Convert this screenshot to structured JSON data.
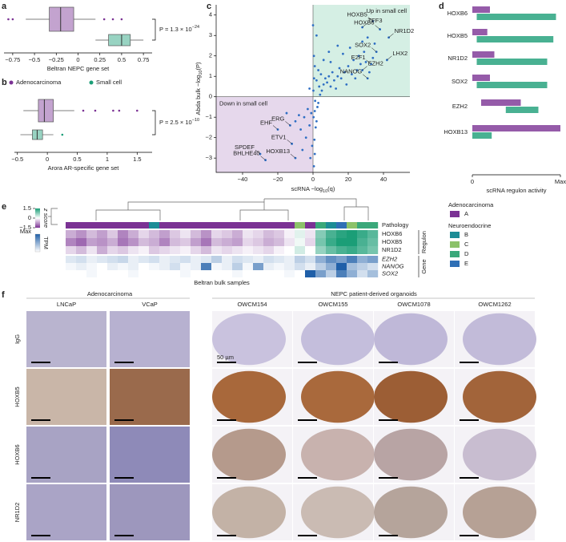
{
  "panel_labels": [
    "a",
    "b",
    "c",
    "d",
    "e",
    "f"
  ],
  "chart_data": [
    {
      "type": "box",
      "xlabel": "Beltran NEPC gene set",
      "xlim": [
        -0.85,
        0.85
      ],
      "xticks": [
        {
          "value": -0.75,
          "label": "−0.75"
        },
        {
          "value": -0.5,
          "label": "−0.5"
        },
        {
          "value": -0.25,
          "label": "−0.25"
        },
        0,
        0.25,
        0.5,
        0.75
      ],
      "series": [
        {
          "color": "#7b3294",
          "box": [
            -0.6,
            -0.33,
            -0.2,
            -0.05,
            0.2
          ],
          "outliers": [
            -0.8,
            -0.75,
            0.3,
            0.4,
            0.5
          ]
        },
        {
          "color": "#1b9e77",
          "box": [
            0.2,
            0.35,
            0.5,
            0.6,
            0.75
          ],
          "outliers": []
        }
      ],
      "p_text": [
        "P = 1.3 × 10",
        "−24"
      ]
    },
    {
      "type": "box",
      "xlabel": "Arora AR-specific gene set",
      "xlim": [
        -0.55,
        1.75
      ],
      "xticks": [
        {
          "value": -0.5,
          "label": "−0.5"
        },
        0,
        0.5,
        1,
        1.5
      ],
      "series": [
        {
          "name": "Adenocarcinoma",
          "color": "#7b3294",
          "box": [
            -0.4,
            -0.15,
            -0.05,
            0.1,
            0.45
          ],
          "outliers": [
            0.6,
            0.8,
            1.1,
            1.2,
            1.5
          ]
        },
        {
          "name": "Small cell",
          "color": "#1b9e77",
          "box": [
            -0.45,
            -0.25,
            -0.17,
            -0.08,
            0.1
          ],
          "outliers": [
            0.25
          ]
        }
      ],
      "p_text": [
        "P = 2.5 × 10",
        "−10"
      ]
    },
    {
      "type": "scatter",
      "xlabel": [
        "scRNA −log",
        "10",
        "(q)"
      ],
      "ylabel": [
        "Abda bulk −log",
        "10",
        "(P)"
      ],
      "xlim": [
        -55,
        55
      ],
      "ylim": [
        -3.7,
        4.5
      ],
      "xticks": [
        {
          "value": -40,
          "label": "−40"
        },
        {
          "value": -20,
          "label": "−20"
        },
        0,
        20,
        40
      ],
      "yticks": [
        4,
        3,
        2,
        1,
        0,
        {
          "value": -1,
          "label": "−1"
        },
        {
          "value": -2,
          "label": "−2"
        },
        {
          "value": -3,
          "label": "−3"
        }
      ],
      "color": "#2f6fc4",
      "region_labels": [
        "Up in small cell",
        "Down in small cell"
      ],
      "region_colors": [
        "#d5efe4",
        "#e6d8ec"
      ],
      "x": [
        0.5,
        1,
        0.8,
        1.5,
        2,
        0.3,
        1,
        2.5,
        3,
        1.2,
        4,
        5,
        3.5,
        6,
        2,
        7,
        4.5,
        8,
        9,
        10,
        11,
        12,
        14,
        15,
        13,
        16,
        18,
        20,
        19,
        22,
        23,
        25,
        24,
        26,
        27,
        29,
        30,
        21,
        17,
        32,
        34,
        35,
        31,
        9,
        6,
        1,
        0.5,
        2,
        -1,
        -2,
        -3,
        -5,
        -4,
        -7,
        -8,
        -6,
        -10,
        -15,
        -1.5,
        -0.5,
        0.2,
        0.6,
        3,
        10,
        14,
        28,
        0,
        -2
      ],
      "values": [
        -3.4,
        -2.8,
        -2.1,
        -1.5,
        -1.2,
        -1.0,
        -0.7,
        -0.5,
        -0.3,
        -0.2,
        0.1,
        0.3,
        0.5,
        0.6,
        0.8,
        0.9,
        1.1,
        0.7,
        1.0,
        0.5,
        1.2,
        0.8,
        1.0,
        1.4,
        0.4,
        0.9,
        1.2,
        1.5,
        0.6,
        1.1,
        1.8,
        1.3,
        0.9,
        2.0,
        1.6,
        2.2,
        1.7,
        2.4,
        2.1,
        1.2,
        1.9,
        2.6,
        2.9,
        2.2,
        1.8,
        1.5,
        2.0,
        3.0,
        -0.8,
        -1.4,
        -0.6,
        -1.0,
        -2.0,
        -1.6,
        -0.9,
        -2.6,
        -1.2,
        -0.8,
        -3.0,
        -2.4,
        0.3,
        0.9,
        1.3,
        1.7,
        2.5,
        2.7,
        3.5,
        0.4
      ],
      "annotations": [
        {
          "label": "HOXB5",
          "x": 34,
          "y": 3.7
        },
        {
          "label": "TFF3",
          "x": 28,
          "y": 3.4
        },
        {
          "label": "HOXB6",
          "x": 38,
          "y": 3.3
        },
        {
          "label": "NR1D2",
          "x": 43,
          "y": 2.9
        },
        {
          "label": "SOX2",
          "x": 36,
          "y": 2.2
        },
        {
          "label": "LHX2",
          "x": 42,
          "y": 1.8
        },
        {
          "label": "E2F1",
          "x": 33,
          "y": 1.6
        },
        {
          "label": "EZH2",
          "x": 28,
          "y": 1.3
        },
        {
          "label": "NANOG",
          "x": 31,
          "y": 0.9
        },
        {
          "label": "ERG",
          "x": -13,
          "y": -1.4
        },
        {
          "label": "EHF",
          "x": -20,
          "y": -1.6
        },
        {
          "label": "ETV1",
          "x": -12,
          "y": -2.3
        },
        {
          "label": "SPDEF",
          "x": -30,
          "y": -2.8
        },
        {
          "label": "BHLHE40",
          "x": -27,
          "y": -3.1
        },
        {
          "label": "HOXB13",
          "x": -10,
          "y": -3.0
        }
      ]
    },
    {
      "type": "strip",
      "xlabel": "scRNA regulon activity",
      "xlim": [
        0,
        1
      ],
      "xticks": [
        0,
        {
          "value": 1,
          "label": "Max"
        }
      ],
      "categories": [
        "HOXB6",
        "HOXB5",
        "NR1D2",
        "SOX2",
        "EZH2",
        "HOXB13"
      ],
      "series": [
        {
          "color": "#7b3294",
          "ranges": [
            [
              0,
              0.2
            ],
            [
              0,
              0.17
            ],
            [
              0,
              0.25
            ],
            [
              0,
              0.2
            ],
            [
              0.1,
              0.55
            ],
            [
              0,
              1
            ]
          ]
        },
        {
          "color": "#1b9e77",
          "ranges": [
            [
              0.05,
              0.95
            ],
            [
              0.05,
              0.92
            ],
            [
              0.05,
              0.85
            ],
            [
              0.05,
              0.85
            ],
            [
              0.38,
              0.75
            ],
            [
              0,
              0.22
            ]
          ]
        }
      ]
    },
    {
      "type": "heatmap",
      "xlabel": "Beltran bulk samples",
      "pathology_label": "Pathology",
      "pathology": [
        "A",
        "A",
        "A",
        "A",
        "A",
        "A",
        "A",
        "A",
        "B",
        "A",
        "A",
        "A",
        "A",
        "A",
        "A",
        "A",
        "A",
        "A",
        "A",
        "A",
        "A",
        "A",
        "C",
        "A",
        "D",
        "B",
        "E",
        "C",
        "D",
        "D"
      ],
      "pathology_colors": {
        "A": "#7b3294",
        "B": "#1c8c96",
        "C": "#8cc269",
        "D": "#3aa87a",
        "E": "#2f6fb5"
      },
      "zlabel": "z score",
      "zlim": [
        -1.5,
        1.5
      ],
      "zticks": [
        1.5,
        0,
        {
          "value": -1.5,
          "label": "−1.5"
        }
      ],
      "zcolors": [
        "#7b3294",
        "#ffffff",
        "#1b9e77"
      ],
      "tpm_label": "TPM",
      "tpm_lim": [
        0,
        1
      ],
      "tpm_ticks": [
        {
          "value": 1,
          "label": "Max"
        }
      ],
      "tpm_colors": [
        "#ffffff",
        "#1f5fa8"
      ],
      "regulon": {
        "title": "Regulon",
        "rows": [
          {
            "name": "HOXB6",
            "values": [
              -0.6,
              -0.8,
              -0.5,
              -0.7,
              -0.4,
              -0.9,
              -0.6,
              -0.3,
              -0.5,
              -0.7,
              -0.4,
              -0.2,
              -0.5,
              -0.8,
              -0.3,
              -0.4,
              -0.6,
              -0.2,
              -0.3,
              -0.5,
              -0.4,
              -0.1,
              0.2,
              -0.2,
              0.8,
              1.2,
              1.4,
              1.5,
              1.3,
              1.1
            ]
          },
          {
            "name": "HOXB5",
            "values": [
              -0.9,
              -1.1,
              -0.7,
              -0.8,
              -0.6,
              -1.0,
              -0.8,
              -0.5,
              -0.6,
              -0.9,
              -0.5,
              -0.4,
              -0.7,
              -1.0,
              -0.5,
              -0.6,
              -0.7,
              -0.3,
              -0.4,
              -0.6,
              -0.5,
              -0.2,
              0.1,
              -0.3,
              0.9,
              1.3,
              1.5,
              1.5,
              1.2,
              1.0
            ]
          },
          {
            "name": "NR1D2",
            "values": [
              -0.3,
              -0.5,
              -0.2,
              -0.6,
              -0.3,
              -0.4,
              -0.2,
              -0.1,
              -0.4,
              -0.3,
              -0.2,
              -0.1,
              -0.3,
              -0.5,
              -0.2,
              -0.3,
              -0.2,
              -0.1,
              -0.2,
              -0.3,
              -0.1,
              0,
              0.3,
              0,
              0.7,
              1.0,
              1.2,
              1.3,
              1.1,
              0.9
            ]
          }
        ]
      },
      "gene": {
        "title": "Gene",
        "rows": [
          {
            "name": "EZH2",
            "values": [
              0.15,
              0.2,
              0.1,
              0.15,
              0.2,
              0.25,
              0.1,
              0.15,
              0.2,
              0.1,
              0.15,
              0.2,
              0.1,
              0.15,
              0.3,
              0.1,
              0.2,
              0.15,
              0.1,
              0.2,
              0.15,
              0.1,
              0.3,
              0.2,
              0.5,
              0.7,
              0.6,
              0.8,
              0.5,
              0.6
            ]
          },
          {
            "name": "NANOG",
            "values": [
              0.05,
              0.1,
              0.05,
              0,
              0.1,
              0.05,
              0.1,
              0,
              0.05,
              0.1,
              0.2,
              0.05,
              0.1,
              0.8,
              0.05,
              0.1,
              0.3,
              0.05,
              0.6,
              0.1,
              0.05,
              0.1,
              0.2,
              0.1,
              0.3,
              0.5,
              1,
              0.4,
              0.3,
              0.2
            ]
          },
          {
            "name": "SOX2",
            "values": [
              0,
              0,
              0.05,
              0,
              0,
              0,
              0.05,
              0,
              0,
              0,
              0,
              0.05,
              0,
              0,
              0,
              0,
              0.05,
              0,
              0,
              0,
              0,
              0.05,
              0,
              1,
              0.6,
              0.3,
              0.8,
              0.5,
              0.2,
              0.4
            ]
          }
        ]
      },
      "legend": [
        {
          "title": "Adenocarcinoma",
          "items": [
            "A"
          ]
        },
        {
          "title": "Neuroendocrine",
          "items": [
            "B",
            "C",
            "D",
            "E"
          ]
        }
      ]
    }
  ],
  "figure_f": {
    "group_headers": [
      "Adenocarcinoma",
      "NEPC patient-derived organoids"
    ],
    "columns": [
      "LNCaP",
      "VCaP",
      "OWCM154",
      "OWCM155",
      "OWCM1078",
      "OWCM1262"
    ],
    "rows": [
      "IgG",
      "HOXB5",
      "HOXB6",
      "NR1D2"
    ],
    "scale_label": "50 µm",
    "tile_colors": [
      [
        "#b9b4cf",
        "#b7b1d0",
        "#c9c2de",
        "#c4bedc",
        "#bfb8d8",
        "#c2bbd9"
      ],
      [
        "#c9b6a8",
        "#9a6a4c",
        "#a8683b",
        "#a9693c",
        "#9c5e35",
        "#a2643a"
      ],
      [
        "#a8a3c4",
        "#8e8ab8",
        "#b59a8c",
        "#c8b2ae",
        "#b8a4a4",
        "#c8bdd0"
      ],
      [
        "#aaa4c6",
        "#9d97bd",
        "#c3b2a6",
        "#cabbb3",
        "#b5a49b",
        "#b6a195"
      ]
    ]
  }
}
